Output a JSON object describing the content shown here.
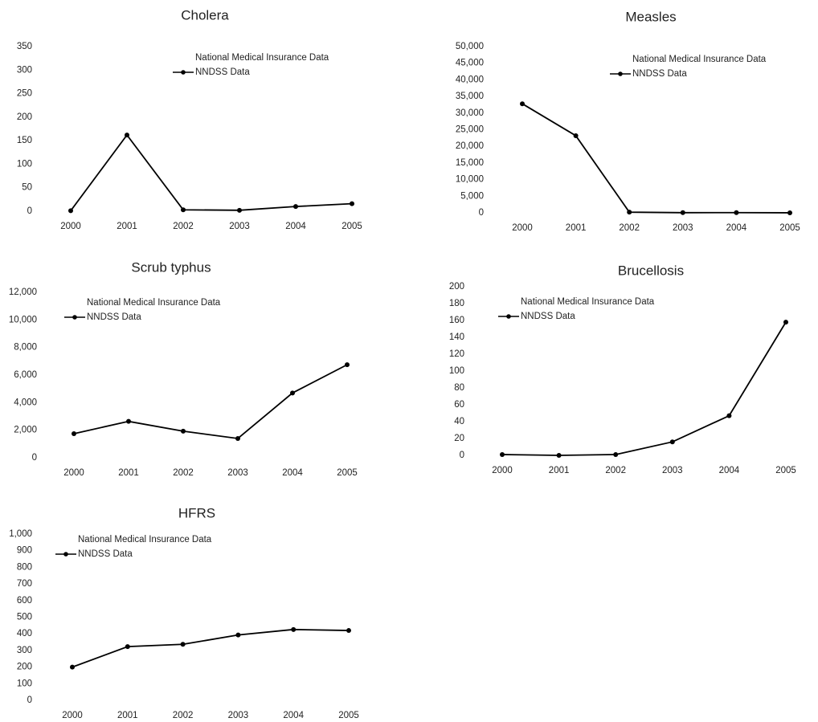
{
  "chart_data": [
    {
      "type": "line",
      "title": "Cholera",
      "categories": [
        "2000",
        "2001",
        "2002",
        "2003",
        "2004",
        "2005"
      ],
      "series": [
        {
          "name": "National Medical Insurance Data",
          "color": "#000000",
          "values": [
            null,
            null,
            null,
            null,
            null,
            null
          ]
        },
        {
          "name": "NNDSS Data",
          "color": "#000000",
          "values": [
            1,
            162,
            3,
            2,
            10,
            16
          ]
        }
      ],
      "ylim": [
        0,
        350
      ],
      "yticks": [
        0,
        50,
        100,
        150,
        200,
        250,
        300,
        350
      ]
    },
    {
      "type": "line",
      "title": "Measles",
      "categories": [
        "2000",
        "2001",
        "2002",
        "2003",
        "2004",
        "2005"
      ],
      "series": [
        {
          "name": "National Medical Insurance Data",
          "color": "#000000",
          "values": [
            null,
            null,
            null,
            null,
            null,
            null
          ]
        },
        {
          "name": "NNDSS Data",
          "color": "#000000",
          "values": [
            32800,
            23200,
            200,
            50,
            60,
            10
          ]
        }
      ],
      "ylim": [
        0,
        50000
      ],
      "yticks": [
        0,
        {
          "value": 5000,
          "label": "5,000"
        },
        {
          "value": 10000,
          "label": "10,000"
        },
        {
          "value": 15000,
          "label": "15,000"
        },
        {
          "value": 20000,
          "label": "20,000"
        },
        {
          "value": 25000,
          "label": "25,000"
        },
        {
          "value": 30000,
          "label": "30,000"
        },
        {
          "value": 35000,
          "label": "35,000"
        },
        {
          "value": 40000,
          "label": "40,000"
        },
        {
          "value": 45000,
          "label": "45,000"
        },
        {
          "value": 50000,
          "label": "50,000"
        }
      ]
    },
    {
      "type": "line",
      "title": "Scrub typhus",
      "categories": [
        "2000",
        "2001",
        "2002",
        "2003",
        "2004",
        "2005"
      ],
      "series": [
        {
          "name": "National Medical Insurance Data",
          "color": "#000000",
          "values": [
            null,
            null,
            null,
            null,
            null,
            null
          ]
        },
        {
          "name": "NNDSS Data",
          "color": "#000000",
          "values": [
            1750,
            2640,
            1930,
            1400,
            4700,
            6750
          ]
        }
      ],
      "ylim": [
        0,
        12000
      ],
      "yticks": [
        0,
        {
          "value": 2000,
          "label": "2,000"
        },
        {
          "value": 4000,
          "label": "4,000"
        },
        {
          "value": 6000,
          "label": "6,000"
        },
        {
          "value": 8000,
          "label": "8,000"
        },
        {
          "value": 10000,
          "label": "10,000"
        },
        {
          "value": 12000,
          "label": "12,000"
        }
      ]
    },
    {
      "type": "line",
      "title": "Brucellosis",
      "categories": [
        "2000",
        "2001",
        "2002",
        "2003",
        "2004",
        "2005"
      ],
      "series": [
        {
          "name": "National Medical Insurance Data",
          "color": "#000000",
          "values": [
            null,
            null,
            null,
            null,
            null,
            null
          ]
        },
        {
          "name": "NNDSS Data",
          "color": "#000000",
          "values": [
            1,
            0,
            1,
            16,
            47,
            158
          ]
        }
      ],
      "ylim": [
        0,
        200
      ],
      "yticks": [
        0,
        20,
        40,
        60,
        80,
        100,
        120,
        140,
        160,
        180,
        200
      ]
    },
    {
      "type": "line",
      "title": "HFRS",
      "categories": [
        "2000",
        "2001",
        "2002",
        "2003",
        "2004",
        "2005"
      ],
      "series": [
        {
          "name": "National Medical Insurance Data",
          "color": "#000000",
          "values": [
            null,
            null,
            null,
            null,
            null,
            null
          ]
        },
        {
          "name": "NNDSS Data",
          "color": "#000000",
          "values": [
            200,
            323,
            337,
            393,
            426,
            420
          ]
        }
      ],
      "ylim": [
        0,
        1000
      ],
      "yticks": [
        0,
        100,
        200,
        300,
        400,
        500,
        600,
        700,
        800,
        900,
        {
          "value": 1000,
          "label": "1,000"
        }
      ]
    }
  ]
}
